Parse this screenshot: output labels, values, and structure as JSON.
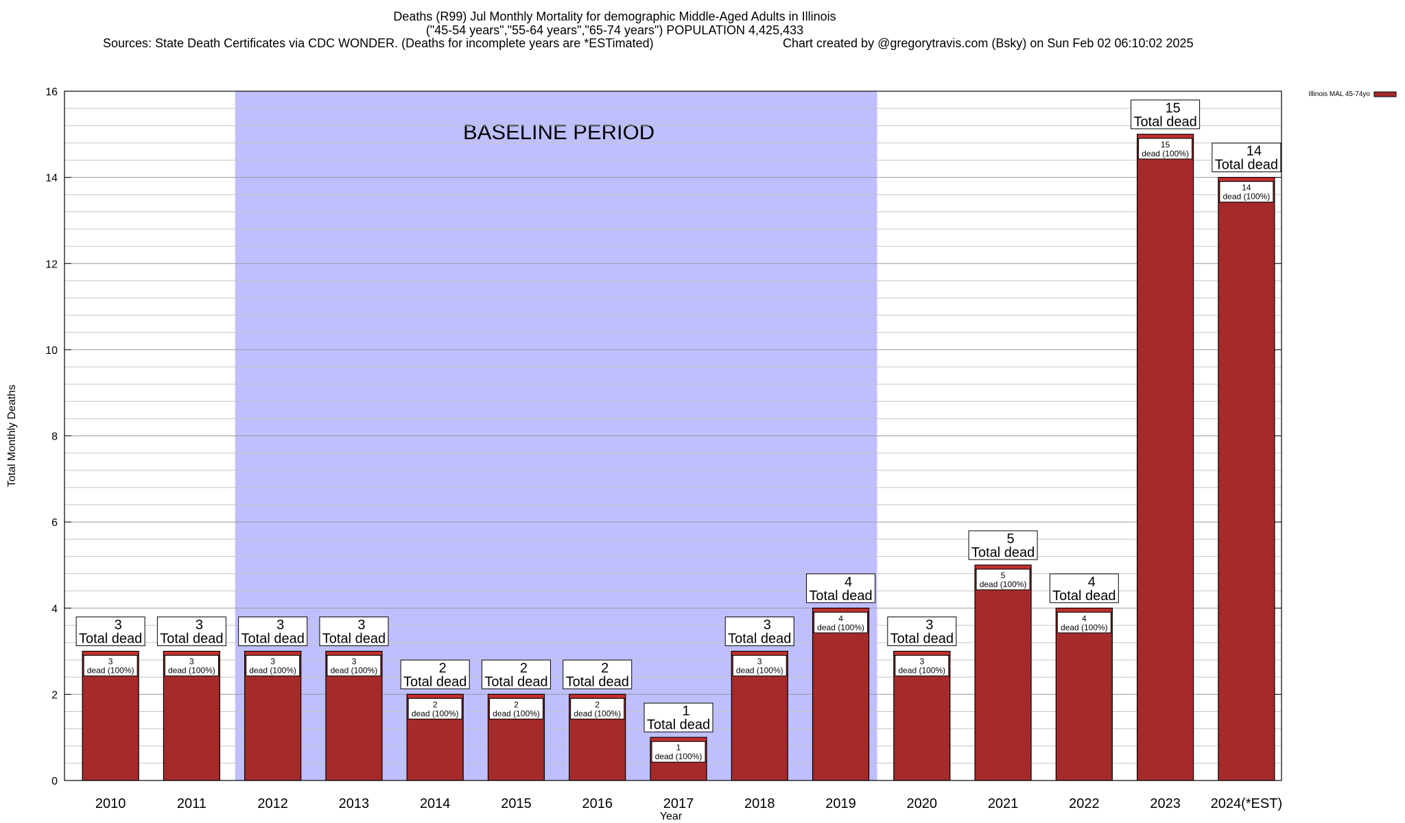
{
  "header": {
    "title_line1": "Deaths (R99) Jul Monthly Mortality for demographic Middle-Aged Adults in Illinois",
    "title_line2": "(\"45-54 years\",\"55-64 years\",\"65-74 years\") POPULATION 4,425,433",
    "sources": "Sources: State Death Certificates via CDC WONDER. (Deaths for incomplete years are *ESTimated)",
    "credit": "Chart created by @gregorytravis.com (Bsky) on Sun Feb 02 06:10:02 2025"
  },
  "chart_data": {
    "type": "bar",
    "title": "Deaths (R99) Jul Monthly Mortality for demographic Middle-Aged Adults in Illinois",
    "xlabel": "Year",
    "ylabel": "Total Monthly Deaths",
    "categories": [
      "2010",
      "2011",
      "2012",
      "2013",
      "2014",
      "2015",
      "2016",
      "2017",
      "2018",
      "2019",
      "2020",
      "2021",
      "2022",
      "2023",
      "2024(*EST)"
    ],
    "series": [
      {
        "name": "Illinois MAL 45-74yo",
        "values": [
          3,
          3,
          3,
          3,
          2,
          2,
          2,
          1,
          3,
          4,
          3,
          5,
          4,
          15,
          14
        ],
        "color": "#a52a2a"
      }
    ],
    "ylim": [
      0,
      16
    ],
    "yticks": [
      0,
      2,
      4,
      6,
      8,
      10,
      12,
      14,
      16
    ],
    "grid": true,
    "legend_position": "top-right, outside plot",
    "total_label_suffix": "Total dead",
    "segment_label_suffix": "dead (100%)",
    "baseline": {
      "label": "BASELINE PERIOD",
      "start_year": "2012",
      "end_year": "2019",
      "color": "#bfbfff"
    },
    "colors": {
      "bar": "#a52a2a",
      "bar_top": "#c0302e",
      "baseline": "#bfbfff",
      "grid": "#b0b0b0"
    }
  }
}
